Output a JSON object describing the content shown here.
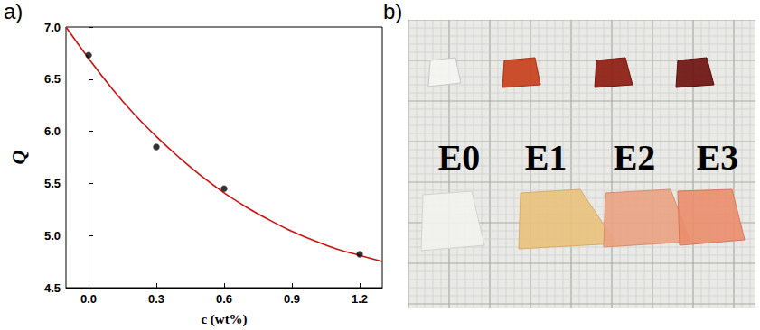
{
  "panel_labels": [
    "a)",
    "b)"
  ],
  "chart_data": {
    "type": "scatter",
    "x_label": "c (wt%)",
    "y_label": "Q",
    "xlim": [
      -0.1,
      1.3
    ],
    "xticks": [
      {
        "value": 0,
        "label": "0.0"
      },
      0.3,
      0.6,
      0.9,
      1.2
    ],
    "ylim": [
      4.5,
      7.0
    ],
    "yticks": [
      4.5,
      {
        "value": 5,
        "label": "5.0"
      },
      5.5,
      {
        "value": 6,
        "label": "6.0"
      },
      6.5,
      {
        "value": 7,
        "label": "7.0"
      }
    ],
    "grid": false,
    "series": [
      {
        "type": "scatter",
        "marker": "circle",
        "color": "#000000",
        "x": [
          0,
          0.3,
          0.6,
          1.2
        ],
        "values": [
          6.73,
          5.85,
          5.45,
          4.82
        ]
      },
      {
        "type": "line",
        "line_style": "solid",
        "color": "#cc1111",
        "x": [
          -0.1,
          0,
          0.1,
          0.2,
          0.3,
          0.4,
          0.5,
          0.6,
          0.7,
          0.8,
          0.9,
          1.0,
          1.1,
          1.2,
          1.3
        ],
        "values": [
          7.0,
          6.7,
          6.42,
          6.17,
          5.95,
          5.75,
          5.57,
          5.41,
          5.27,
          5.15,
          5.04,
          4.95,
          4.87,
          4.81,
          4.75
        ]
      }
    ]
  },
  "photo": {
    "sample_labels": [
      "E0",
      "E1",
      "E2",
      "E3"
    ]
  }
}
